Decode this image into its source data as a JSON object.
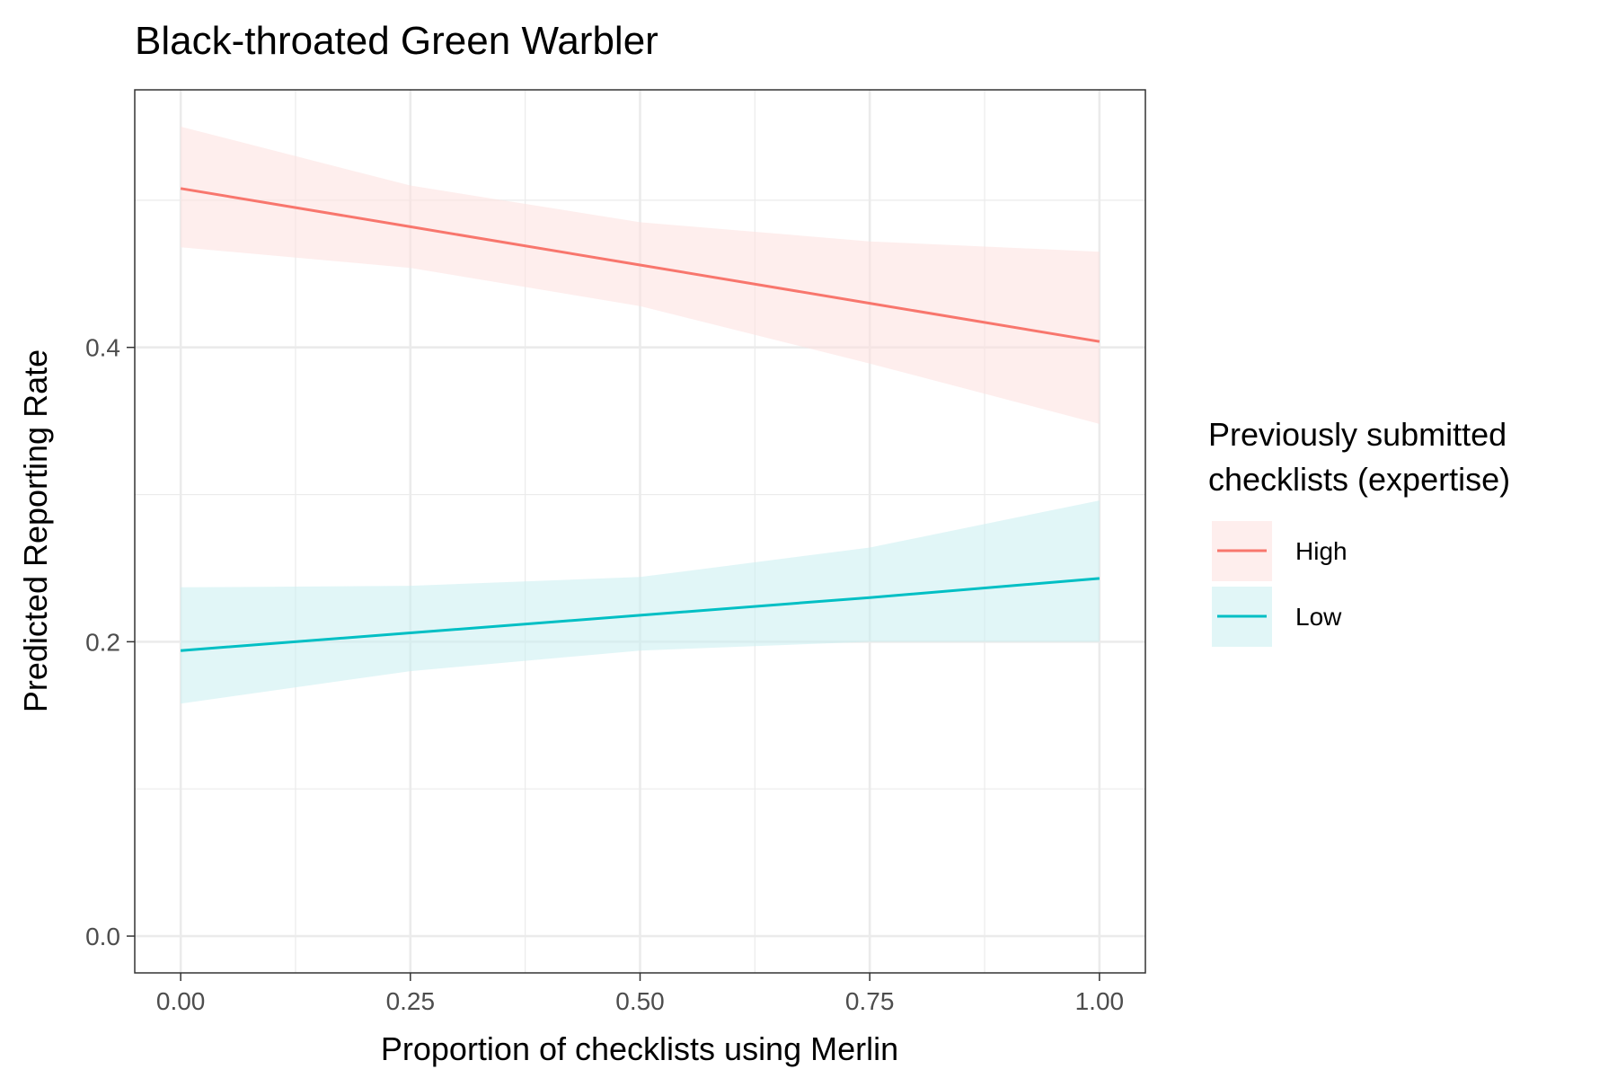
{
  "chart_data": {
    "type": "line",
    "title": "Black-throated Green Warbler",
    "xlabel": "Proportion of checklists using Merlin",
    "ylabel": "Predicted Reporting Rate",
    "xlim": [
      -0.05,
      1.05
    ],
    "ylim": [
      -0.025,
      0.575
    ],
    "x_ticks": [
      0.0,
      0.25,
      0.5,
      0.75,
      1.0
    ],
    "x_tick_labels": [
      "0.00",
      "0.25",
      "0.50",
      "0.75",
      "1.00"
    ],
    "y_ticks": [
      0.0,
      0.2,
      0.4
    ],
    "y_tick_labels": [
      "0.0",
      "0.2",
      "0.4"
    ],
    "grid": true,
    "legend": {
      "title_lines": [
        "Previously submitted",
        "checklists (expertise)"
      ],
      "placement": "right"
    },
    "series": [
      {
        "name": "High",
        "color": "#F8766D",
        "ribbon_color": "#FDE0DE",
        "x": [
          0,
          0.25,
          0.5,
          0.75,
          1.0
        ],
        "values": [
          0.508,
          0.482,
          0.456,
          0.43,
          0.404
        ],
        "lower": [
          0.468,
          0.454,
          0.428,
          0.389,
          0.348
        ],
        "upper": [
          0.55,
          0.51,
          0.485,
          0.472,
          0.465
        ]
      },
      {
        "name": "Low",
        "color": "#00BFC4",
        "ribbon_color": "#C8EEF0",
        "x": [
          0,
          0.25,
          0.5,
          0.75,
          1.0
        ],
        "values": [
          0.194,
          0.206,
          0.218,
          0.23,
          0.243
        ],
        "lower": [
          0.158,
          0.18,
          0.194,
          0.2,
          0.2
        ],
        "upper": [
          0.237,
          0.238,
          0.244,
          0.264,
          0.296
        ]
      }
    ]
  }
}
